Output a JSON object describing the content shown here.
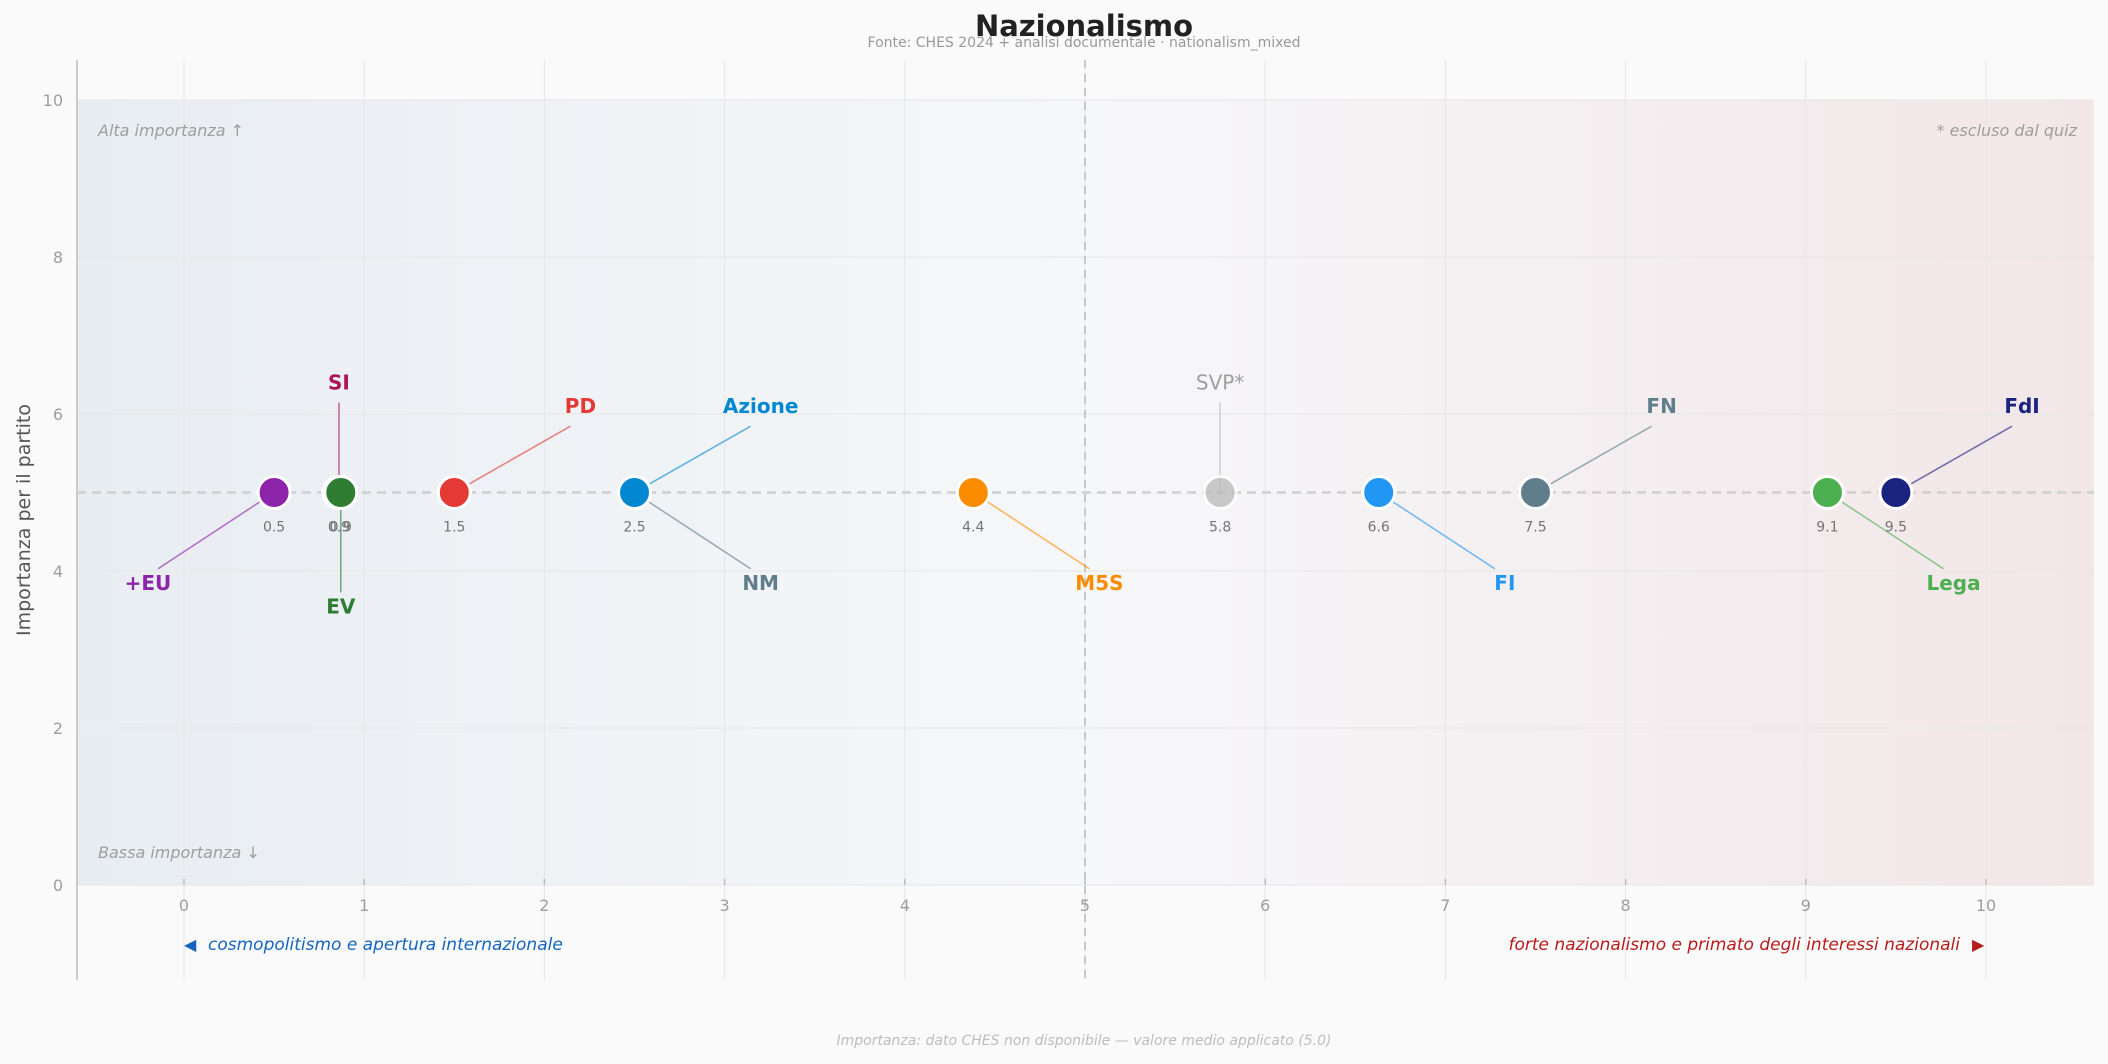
{
  "chart_data": {
    "type": "scatter",
    "title": "Nazionalismo",
    "subtitle": "Fonte: CHES 2024 + analisi documentale  ·  nationalism_mixed",
    "xlabel": "",
    "ylabel": "Importanza per il partito",
    "xlim": [
      -0.6,
      10.6
    ],
    "ylim": [
      -1.2,
      10.5
    ],
    "x_ticks": [
      "0",
      "1",
      "2",
      "3",
      "4",
      "5",
      "6",
      "7",
      "8",
      "9",
      "10"
    ],
    "y_ticks": [
      "0",
      "2",
      "4",
      "6",
      "8",
      "10"
    ],
    "grid": true,
    "left_pole": "cosmopolitismo e apertura internazionale",
    "right_pole": "forte nazionalismo e primato degli interessi nazionali",
    "left_arrow": "◀",
    "right_arrow": "▶",
    "corner_top_left": "Alta importanza ↑",
    "corner_bottom_left": "Bassa importanza ↓",
    "corner_top_right": "* escluso dal quiz",
    "footnote": "Importanza: dato CHES non disponibile — valore medio applicato (5.0)",
    "colors": {
      "left_zone": "#e8edf2",
      "right_zone": "#f2e6e8",
      "neutral_line": "#c8c8c8"
    },
    "points": [
      {
        "name": "+EU",
        "x": 0.5,
        "y": 5,
        "value_label": "0.5",
        "color": "#8e24aa",
        "label_x": -0.2,
        "label_y": 3.85
      },
      {
        "name": "SI",
        "x": 0.86,
        "y": 5,
        "value_label": "0.9",
        "color": "#ad1457",
        "label_x": 0.86,
        "label_y": 6.4
      },
      {
        "name": "EV",
        "x": 0.87,
        "y": 5,
        "value_label": "0.9",
        "color": "#2e7d32",
        "label_x": 0.87,
        "label_y": 3.55
      },
      {
        "name": "PD",
        "x": 1.5,
        "y": 5,
        "value_label": "1.5",
        "color": "#e53935",
        "label_x": 2.2,
        "label_y": 6.1
      },
      {
        "name": "Azione",
        "x": 2.5,
        "y": 5,
        "value_label": "2.5",
        "color": "#0288d1",
        "label_x": 3.2,
        "label_y": 6.1
      },
      {
        "name": "NM",
        "x": 2.5,
        "y": 5,
        "value_label": "2.5",
        "color": "#607d8b",
        "label_x": 3.2,
        "label_y": 3.85,
        "hidden_marker": true
      },
      {
        "name": "M5S",
        "x": 4.38,
        "y": 5,
        "value_label": "4.4",
        "color": "#fb8c00",
        "label_x": 5.08,
        "label_y": 3.85
      },
      {
        "name": "SVP*",
        "x": 5.75,
        "y": 5,
        "value_label": "5.8",
        "color": "#bdbdbd",
        "label_x": 5.75,
        "label_y": 6.4,
        "excluded": true
      },
      {
        "name": "FI",
        "x": 6.63,
        "y": 5,
        "value_label": "6.6",
        "color": "#2196f3",
        "label_x": 7.33,
        "label_y": 3.85
      },
      {
        "name": "FN",
        "x": 7.5,
        "y": 5,
        "value_label": "7.5",
        "color": "#607d8b",
        "label_x": 8.2,
        "label_y": 6.1
      },
      {
        "name": "Lega",
        "x": 9.12,
        "y": 5,
        "value_label": "9.1",
        "color": "#4caf50",
        "label_x": 9.82,
        "label_y": 3.85
      },
      {
        "name": "FdI",
        "x": 9.5,
        "y": 5,
        "value_label": "9.5",
        "color": "#1a237e",
        "label_x": 10.2,
        "label_y": 6.1
      }
    ]
  }
}
